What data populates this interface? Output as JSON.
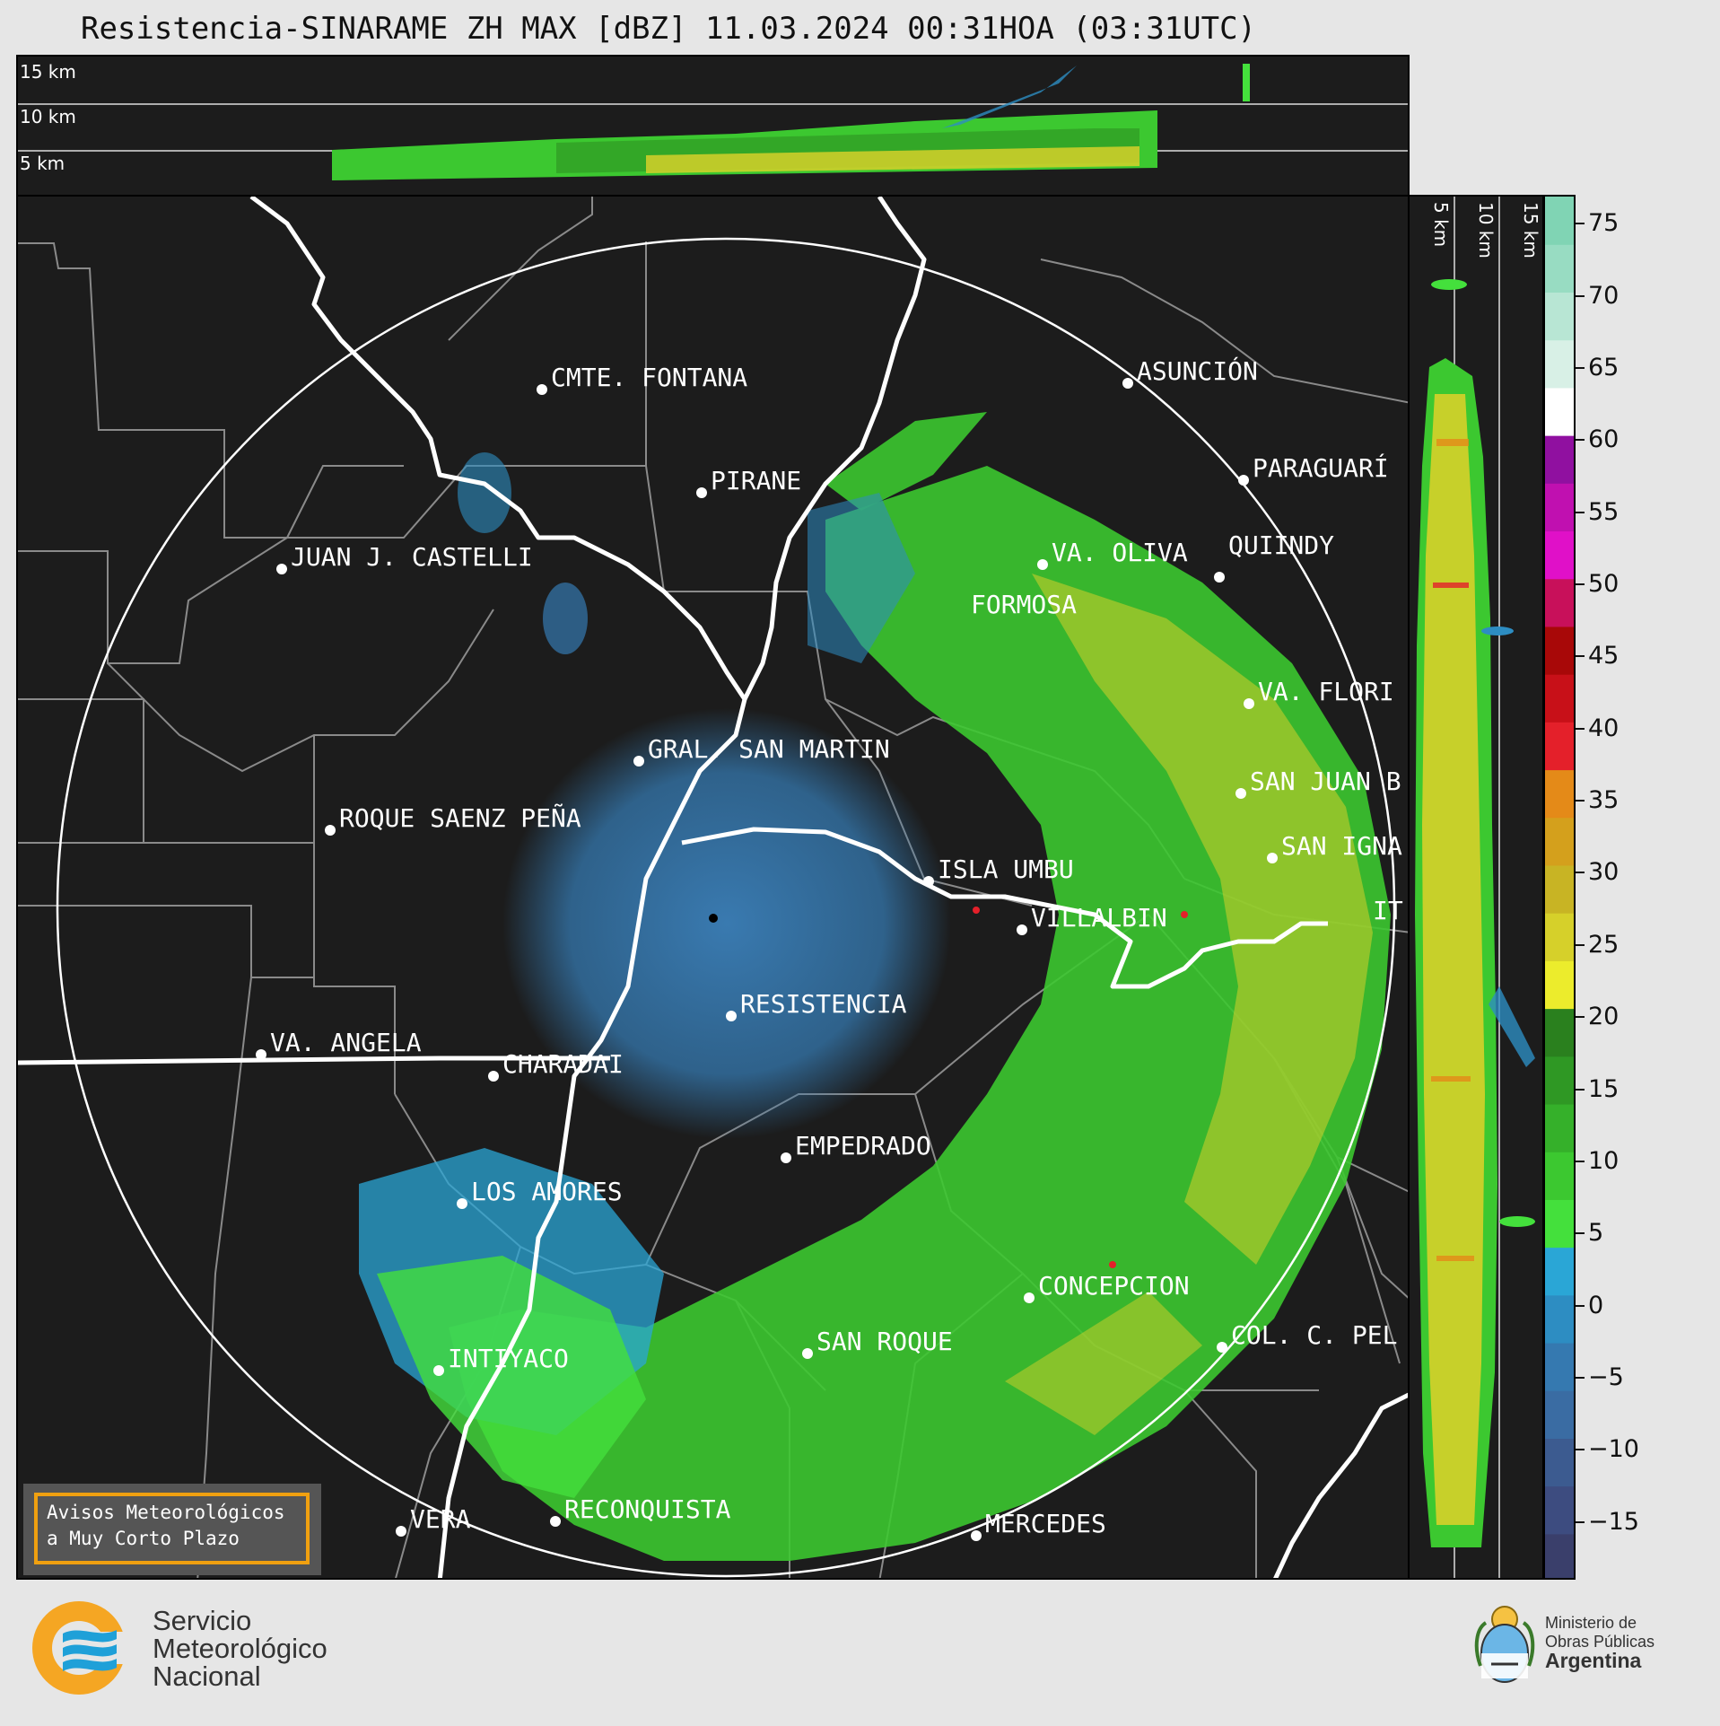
{
  "title": "Resistencia-SINARAME ZH MAX [dBZ] 11.03.2024 00:31HOA (03:31UTC)",
  "top_section": {
    "labels": [
      "15 km",
      "10 km",
      "5 km"
    ]
  },
  "side_section": {
    "labels": [
      "5 km",
      "10 km",
      "15 km"
    ]
  },
  "map": {
    "cities": [
      {
        "name": "CMTE. FONTANA"
      },
      {
        "name": "ASUNCIÓN"
      },
      {
        "name": "PIRANE"
      },
      {
        "name": "PARAGUARÍ"
      },
      {
        "name": "JUAN J. CASTELLI"
      },
      {
        "name": "VA. OLIVA"
      },
      {
        "name": "QUIINDY"
      },
      {
        "name": "FORMOSA"
      },
      {
        "name": "VA. FLORI"
      },
      {
        "name": "GRAL. SAN MARTIN"
      },
      {
        "name": "SAN JUAN B"
      },
      {
        "name": "ROQUE SAENZ PEÑA"
      },
      {
        "name": "SAN IGNA"
      },
      {
        "name": "ISLA UMBU"
      },
      {
        "name": "VILLALBIN"
      },
      {
        "name": "RESISTENCIA"
      },
      {
        "name": "VA. ANGELA"
      },
      {
        "name": "CHARADAI"
      },
      {
        "name": "EMPEDRADO"
      },
      {
        "name": "LOS AMORES"
      },
      {
        "name": "CONCEPCION"
      },
      {
        "name": "SAN ROQUE"
      },
      {
        "name": "COL. C. PEL"
      },
      {
        "name": "INTIYACO"
      },
      {
        "name": "RECONQUISTA"
      },
      {
        "name": "MERCEDES"
      },
      {
        "name": "VERA"
      },
      {
        "name": "IT"
      }
    ]
  },
  "colorbar": {
    "unit": "dBZ",
    "ticks": [
      "75",
      "70",
      "65",
      "60",
      "55",
      "50",
      "45",
      "40",
      "35",
      "30",
      "25",
      "20",
      "15",
      "10",
      "5",
      "0",
      "−5",
      "−10",
      "−15"
    ],
    "min": -19,
    "max": 77,
    "colors": [
      "#3a3f6b",
      "#3d4c80",
      "#3c5b90",
      "#3a6ca3",
      "#3579b0",
      "#2d8dc2",
      "#2aa6d6",
      "#44e03c",
      "#3cc830",
      "#35b02a",
      "#2f9824",
      "#2a801e",
      "#ecec2c",
      "#d6d02a",
      "#c8b424",
      "#d4a01c",
      "#e48a18",
      "#e4202a",
      "#c81018",
      "#a80808",
      "#c8105a",
      "#e010c8",
      "#c010b0",
      "#9010a0",
      "#ffffff",
      "#d8f0e6",
      "#b8e6d4",
      "#98dcc2",
      "#80d4b4"
    ]
  },
  "badge": {
    "line1": "Avisos Meteorológicos",
    "line2": "a Muy Corto Plazo"
  },
  "footer": {
    "smn": {
      "line1": "Servicio",
      "line2": "Meteorológico",
      "line3": "Nacional"
    },
    "ministry": {
      "line1": "Ministerio de",
      "line2": "Obras Públicas",
      "line3": "Argentina"
    }
  }
}
